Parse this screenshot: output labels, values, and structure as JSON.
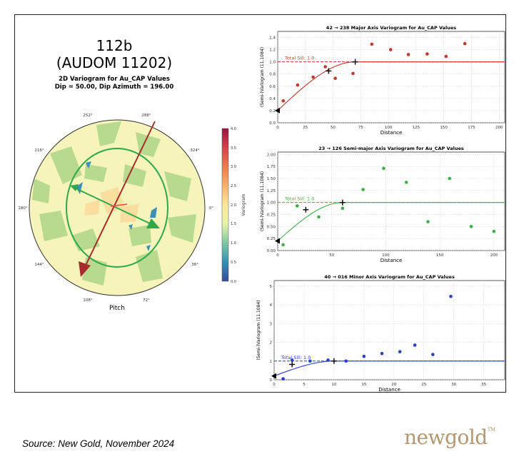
{
  "header": {
    "sample_id": "112b",
    "sample_code": "(AUDOM 11202)",
    "plot_title": "2D Variogram for Au_CAP Values",
    "plot_subtitle": "Dip = 50.00, Dip Azimuth = 196.00"
  },
  "polar": {
    "xlabel": "Pitch",
    "angle_labels": [
      "252°",
      "288°",
      "216°",
      "324°",
      "180°",
      "0°",
      "144°",
      "36°",
      "108°",
      "72°"
    ],
    "colorbar_label": "Variogram",
    "colorbar_ticks": [
      "4.0",
      "3.5",
      "3.0",
      "2.5",
      "2.0",
      "1.5",
      "1.0",
      "0.5",
      "0.0"
    ]
  },
  "footer": {
    "source": "Source: New Gold, November 2024",
    "logo": "newgold",
    "logo_tm": "TM"
  },
  "chart_data": [
    {
      "type": "scatter",
      "title": "42 → 238 Major Axis Variogram for Au_CAP Values",
      "xlabel": "Distance",
      "ylabel": "(Semi-)Variogram (11.1084)",
      "xlim": [
        0,
        205
      ],
      "ylim": [
        0,
        1.5
      ],
      "xticks": [
        "0",
        "25",
        "50",
        "75",
        "100",
        "125",
        "150",
        "175",
        "200"
      ],
      "yticks": [
        "0.0",
        "0.2",
        "0.4",
        "0.6",
        "0.8",
        "1.0",
        "1.2",
        "1.4"
      ],
      "color": "#c0392b",
      "sill_label": "Total Sill: 1.0",
      "sill": 1.0,
      "range": 70,
      "nugget": 0.2,
      "points": [
        [
          5,
          0.36
        ],
        [
          18,
          0.62
        ],
        [
          32,
          0.75
        ],
        [
          43,
          0.92
        ],
        [
          52,
          0.73
        ],
        [
          68,
          0.81
        ],
        [
          85,
          1.29
        ],
        [
          102,
          1.2
        ],
        [
          118,
          1.12
        ],
        [
          135,
          1.13
        ],
        [
          152,
          1.09
        ],
        [
          169,
          1.3
        ]
      ],
      "markers": [
        [
          46,
          0.85
        ],
        [
          70,
          1.0
        ]
      ],
      "triangle": [
        0,
        0.2
      ],
      "grid": true
    },
    {
      "type": "scatter",
      "title": "23 → 126 Semi-major Axis Variogram for Au_CAP Values",
      "xlabel": "Distance",
      "ylabel": "(Semi-)Variogram (11.1084)",
      "xlim": [
        0,
        210
      ],
      "ylim": [
        0,
        2.05
      ],
      "xticks": [
        "0",
        "50",
        "100",
        "150",
        "200"
      ],
      "yticks": [
        "0.00",
        "0.25",
        "0.50",
        "0.75",
        "1.00",
        "1.25",
        "1.50",
        "1.75",
        "2.00"
      ],
      "color": "#3cb043",
      "sill_label": "Total Sill: 1.0",
      "sill": 1.0,
      "range": 60,
      "nugget": 0.2,
      "points": [
        [
          5,
          0.12
        ],
        [
          18,
          0.93
        ],
        [
          38,
          0.7
        ],
        [
          60,
          0.88
        ],
        [
          79,
          1.27
        ],
        [
          98,
          1.71
        ],
        [
          119,
          1.42
        ],
        [
          139,
          0.6
        ],
        [
          159,
          1.5
        ],
        [
          179,
          0.5
        ],
        [
          200,
          0.4
        ]
      ],
      "markers": [
        [
          26,
          0.85
        ],
        [
          60,
          1.0
        ]
      ],
      "triangle": [
        0,
        0.2
      ],
      "grid": true
    },
    {
      "type": "scatter",
      "title": "40 → 016 Minor Axis Variogram for Au_CAP Values",
      "xlabel": "Distance",
      "ylabel": "(Semi-)Variogram (11.1084)",
      "xlim": [
        0,
        38.5
      ],
      "ylim": [
        0,
        5.3
      ],
      "xticks": [
        "0",
        "5",
        "10",
        "15",
        "20",
        "25",
        "30",
        "35"
      ],
      "yticks": [
        "0",
        "1",
        "2",
        "3",
        "4",
        "5"
      ],
      "color": "#2c3ec8",
      "sill_label": "Total Sill: 1.0",
      "sill": 1.0,
      "range": 10,
      "nugget": 0.2,
      "points": [
        [
          1.5,
          0.05
        ],
        [
          3,
          1.05
        ],
        [
          6,
          1.0
        ],
        [
          9,
          1.05
        ],
        [
          12,
          1.0
        ],
        [
          15,
          1.25
        ],
        [
          18,
          1.4
        ],
        [
          21,
          1.5
        ],
        [
          23.5,
          1.85
        ],
        [
          26.5,
          1.35
        ],
        [
          29.5,
          4.45
        ]
      ],
      "markers": [
        [
          3,
          0.82
        ],
        [
          10,
          1.0
        ]
      ],
      "triangle": [
        0,
        0.2
      ],
      "grid": true
    }
  ]
}
